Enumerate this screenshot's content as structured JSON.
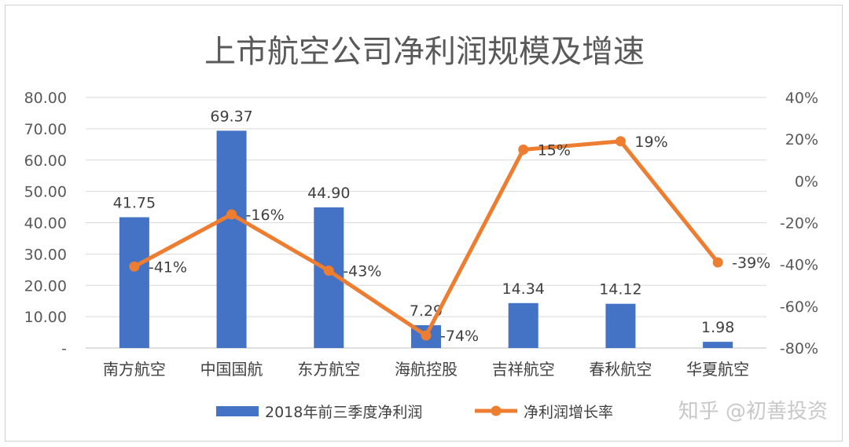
{
  "chart_data": {
    "type": "bar",
    "title": "上市航空公司净利润规模及增速",
    "categories": [
      "南方航空",
      "中国国航",
      "东方航空",
      "海航控股",
      "吉祥航空",
      "春秋航空",
      "华夏航空"
    ],
    "series": [
      {
        "name": "2018年前三季度净利润",
        "type": "bar",
        "axis": "left",
        "color": "#4472C4",
        "values": [
          41.75,
          69.37,
          44.9,
          7.29,
          14.34,
          14.12,
          1.98
        ],
        "labels": [
          "41.75",
          "69.37",
          "44.90",
          "7.29",
          "14.34",
          "14.12",
          "1.98"
        ]
      },
      {
        "name": "净利润增长率",
        "type": "line",
        "axis": "right",
        "color": "#ED7D31",
        "values": [
          -41,
          -16,
          -43,
          -74,
          15,
          19,
          -39
        ],
        "labels": [
          "-41%",
          "-16%",
          "-43%",
          "-74%",
          "15%",
          "19%",
          "-39%"
        ]
      }
    ],
    "y_left": {
      "range": [
        0,
        80
      ],
      "ticks": [
        0,
        10,
        20,
        30,
        40,
        50,
        60,
        70,
        80
      ],
      "tick_labels": [
        "-",
        "10.00",
        "20.00",
        "30.00",
        "40.00",
        "50.00",
        "60.00",
        "70.00",
        "80.00"
      ]
    },
    "y_right": {
      "range": [
        -80,
        40
      ],
      "ticks": [
        -80,
        -60,
        -40,
        -20,
        0,
        20,
        40
      ],
      "tick_labels": [
        "-80%",
        "-60%",
        "-40%",
        "-20%",
        "0%",
        "20%",
        "40%"
      ]
    },
    "grid": true,
    "legend_position": "bottom"
  },
  "watermark": "知乎 @初善投资"
}
